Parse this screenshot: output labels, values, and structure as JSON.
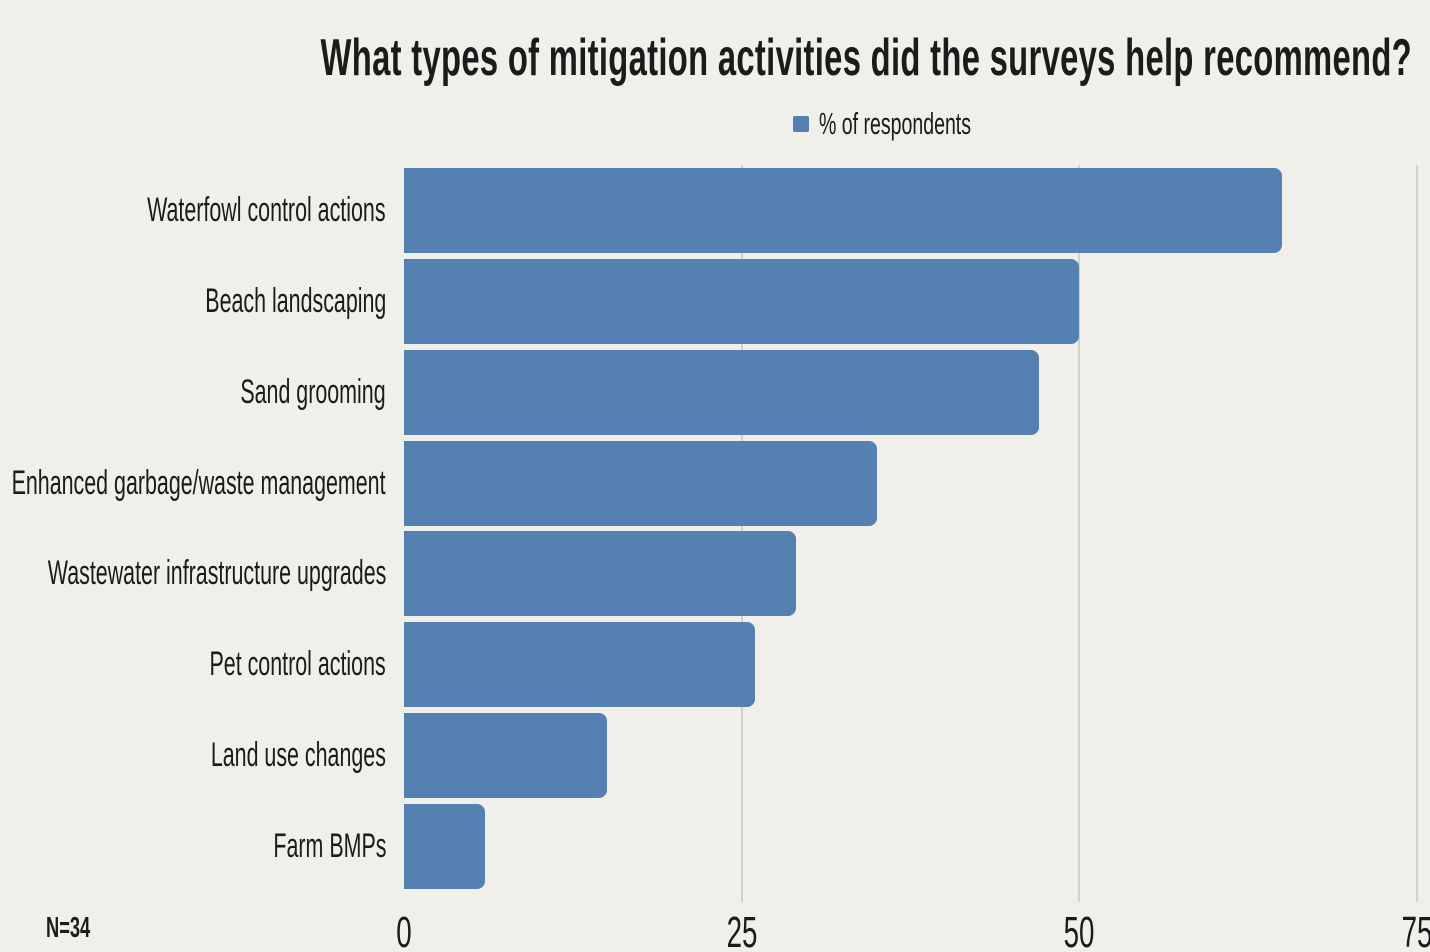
{
  "colors": {
    "background": "#F1EFE9",
    "bar": "#5480B2",
    "gridline": "#D3D1CB",
    "text": "#1B1B1B"
  },
  "note": "N=34",
  "chart_data": {
    "type": "bar",
    "orientation": "horizontal",
    "title": "What types of mitigation activities did the surveys help recommend?",
    "legend": [
      {
        "label": "% of respondents",
        "color": "#5480B2",
        "swatch": "square-icon"
      }
    ],
    "categories": [
      "Waterfowl control actions",
      "Beach landscaping",
      "Sand grooming",
      "Enhanced garbage/waste management",
      "Wastewater infrastructure upgrades",
      "Pet control actions",
      "Land use changes",
      "Farm BMPs"
    ],
    "values": [
      65,
      50,
      47,
      35,
      29,
      26,
      15,
      6
    ],
    "value_unit": "% of respondents",
    "xlabel": "",
    "ylabel": "",
    "xlim": [
      0,
      75
    ],
    "x_ticks": [
      0,
      25,
      50,
      75
    ],
    "grid": "vertical-on",
    "legend_position": "top-center",
    "sample_size_note": "N=34"
  }
}
